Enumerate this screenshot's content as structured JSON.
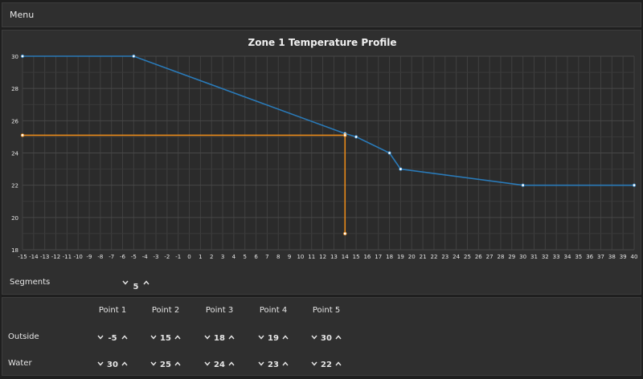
{
  "menu": {
    "label": "Menu"
  },
  "chart_data": {
    "type": "line",
    "title": "Zone 1 Temperature Profile",
    "xlim": [
      -15,
      40
    ],
    "ylim": [
      18,
      30
    ],
    "x_ticks": [
      -15,
      -14,
      -13,
      -12,
      -11,
      -10,
      -9,
      -8,
      -7,
      -6,
      -5,
      -4,
      -3,
      -2,
      -1,
      0,
      1,
      2,
      3,
      4,
      5,
      6,
      7,
      8,
      9,
      10,
      11,
      12,
      13,
      14,
      15,
      16,
      17,
      18,
      19,
      20,
      21,
      22,
      23,
      24,
      25,
      26,
      27,
      28,
      29,
      30,
      31,
      32,
      33,
      34,
      35,
      36,
      37,
      38,
      39,
      40
    ],
    "y_ticks": [
      18,
      20,
      22,
      24,
      26,
      28,
      30
    ],
    "grid": true,
    "series": [
      {
        "color": "#2a7ab8",
        "x": [
          -15,
          -5,
          14,
          15,
          18,
          19,
          30,
          40
        ],
        "y": [
          30,
          30,
          25.2,
          25,
          24,
          23,
          22,
          22
        ]
      },
      {
        "color": "#e88a1a",
        "x": [
          -15,
          14,
          14
        ],
        "y": [
          25.1,
          25.1,
          19
        ]
      }
    ]
  },
  "segments": {
    "label": "Segments",
    "value": "5"
  },
  "points": {
    "headers": [
      "Point 1",
      "Point 2",
      "Point 3",
      "Point 4",
      "Point 5"
    ],
    "outside_label": "Outside",
    "water_label": "Water",
    "outside": [
      "-5",
      "15",
      "18",
      "19",
      "30"
    ],
    "water": [
      "30",
      "25",
      "24",
      "23",
      "22"
    ]
  },
  "colors": {
    "accent": "#2a7ab8",
    "highlight": "#e88a1a",
    "panel": "#2f2f2f"
  }
}
